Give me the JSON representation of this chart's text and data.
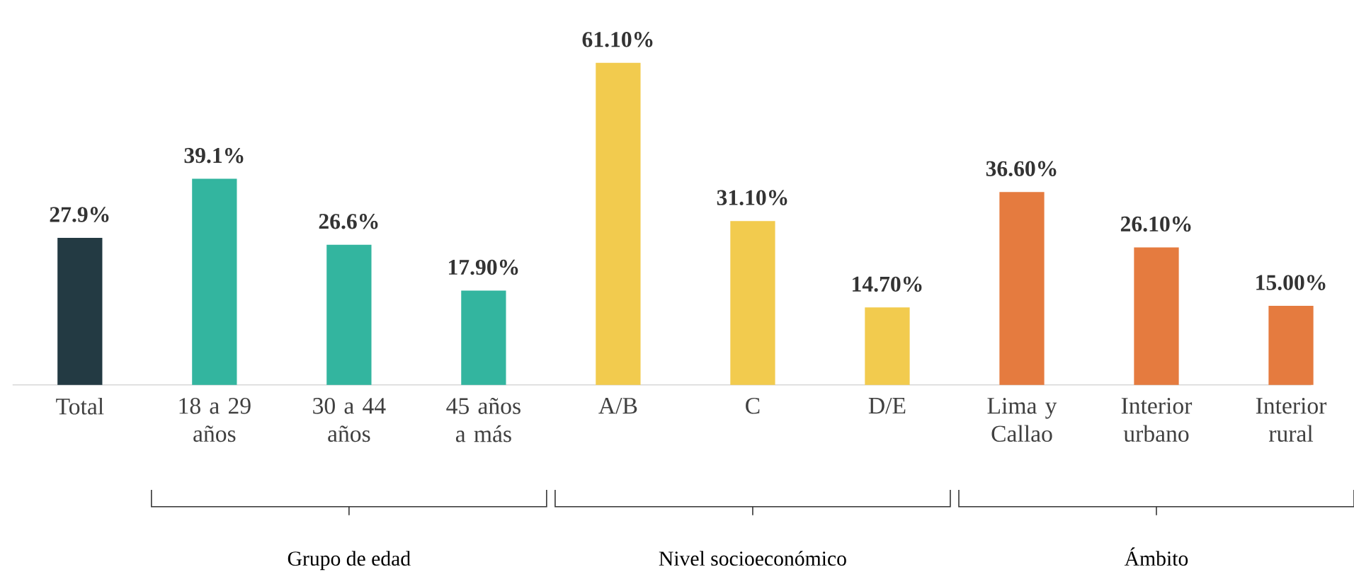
{
  "chart_data": {
    "type": "bar",
    "categories": [
      "Total",
      "18 a 29 años",
      "30 a 44 años",
      "45 años a más",
      "A/B",
      "C",
      "D/E",
      "Lima y Callao",
      "Interior urbano",
      "Interior rural"
    ],
    "values": [
      27.9,
      39.1,
      26.6,
      17.9,
      61.1,
      31.1,
      14.7,
      36.6,
      26.1,
      15.0
    ],
    "value_labels": [
      "27.9%",
      "39.1%",
      "26.6%",
      "17.90%",
      "61.10%",
      "31.10%",
      "14.70%",
      "36.60%",
      "26.10%",
      "15.00%"
    ],
    "colors": [
      "#233a43",
      "#33b59f",
      "#33b59f",
      "#33b59f",
      "#f2cb4e",
      "#f2cb4e",
      "#f2cb4e",
      "#e57b3f",
      "#e57b3f",
      "#e57b3f"
    ],
    "annotations": [
      "Grupo de edad",
      "Nivel socioeconómico",
      "Ámbito"
    ]
  }
}
